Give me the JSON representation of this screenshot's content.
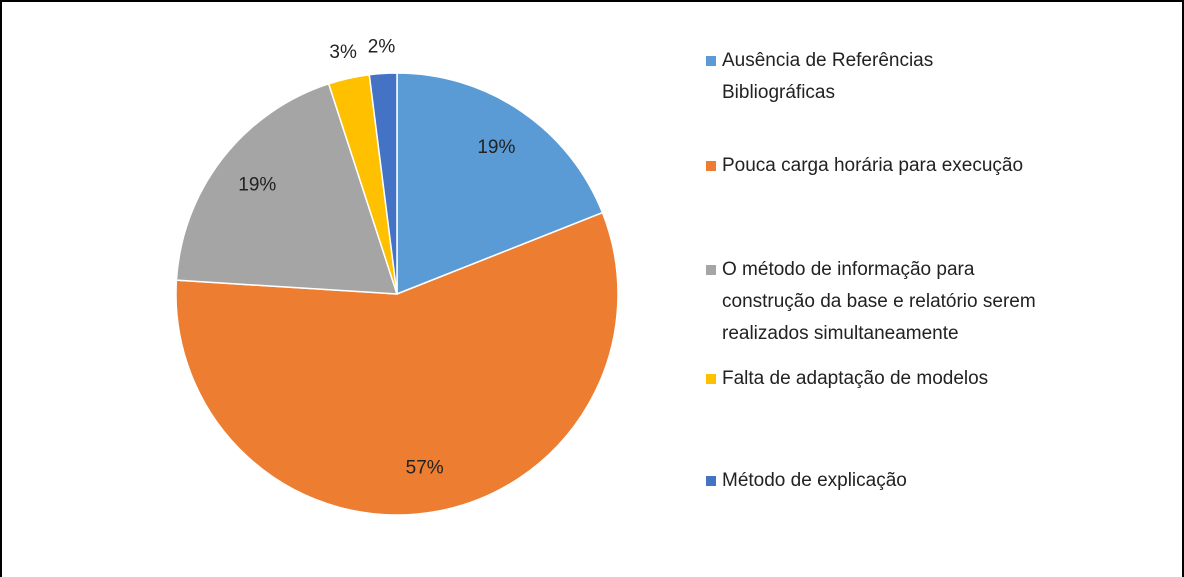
{
  "chart_data": {
    "type": "pie",
    "categories": [
      "Ausência de Referências Bibliográficas",
      "Pouca carga horária para execução",
      "O método de informação para construção da base e relatório serem realizados simultaneamente",
      "Falta de adaptação de modelos",
      "Método de explicação"
    ],
    "values": [
      19,
      57,
      19,
      3,
      2
    ],
    "value_labels": [
      "19%",
      "57%",
      "19%",
      "3%",
      "2%"
    ],
    "colors": [
      "#5b9bd5",
      "#ed7d31",
      "#a5a5a5",
      "#ffc000",
      "#4472c4"
    ],
    "legend": "right"
  }
}
